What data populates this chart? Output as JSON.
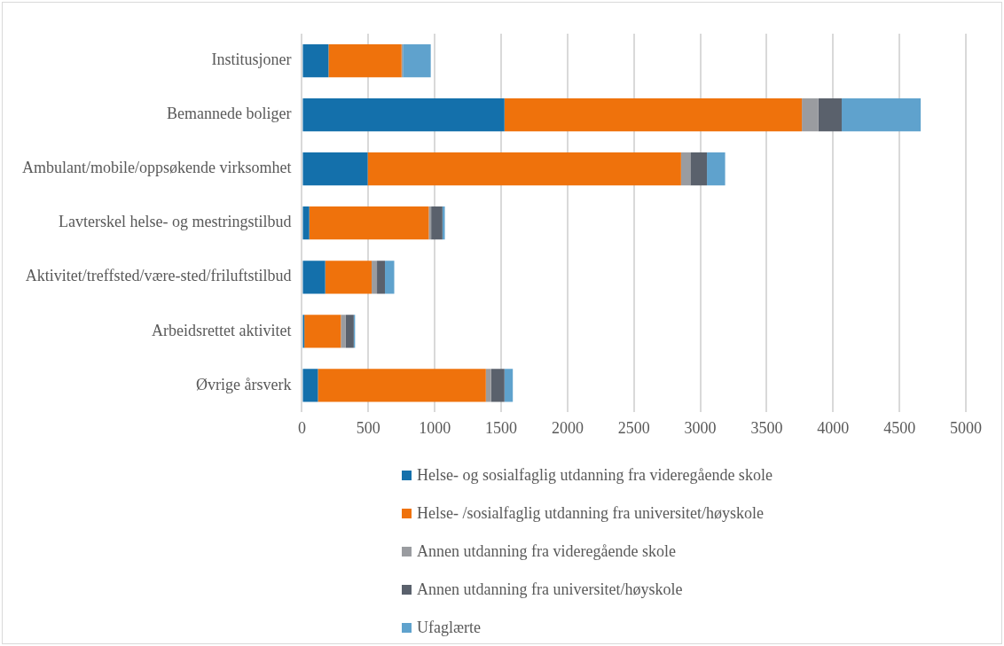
{
  "chart_data": {
    "type": "bar",
    "orientation": "horizontal",
    "stacked": true,
    "categories": [
      "Institusjoner",
      "Bemannede boliger",
      "Ambulant/mobile/oppsøkende virksomhet",
      "Lavterskel helse- og mestringstilbud",
      "Aktivitet/treffsted/være-sted/friluftstilbud",
      "Arbeidsrettet aktivitet",
      "Øvrige årsverk"
    ],
    "series": [
      {
        "name": "Helse- og sosialfaglig utdanning fra videregående skole",
        "color": "#1470ab",
        "values": [
          200,
          1525,
          495,
          55,
          175,
          18,
          120
        ]
      },
      {
        "name": "Helse- /sosialfaglig utdanning fra universitet/høyskole",
        "color": "#ef720c",
        "values": [
          550,
          2240,
          2360,
          900,
          350,
          275,
          1265
        ]
      },
      {
        "name": "Annen utdanning fra videregående skole",
        "color": "#9a9ca0",
        "values": [
          10,
          125,
          70,
          18,
          40,
          37,
          40
        ]
      },
      {
        "name": "Annen utdanning fra universitet/høyskole",
        "color": "#5a616c",
        "values": [
          0,
          175,
          125,
          85,
          60,
          60,
          100
        ]
      },
      {
        "name": "Ufaglærte",
        "color": "#5fa2cd",
        "values": [
          210,
          595,
          137,
          18,
          70,
          10,
          63
        ]
      }
    ],
    "xlim": [
      0,
      5000
    ],
    "xticks": [
      0,
      500,
      1000,
      1500,
      2000,
      2500,
      3000,
      3500,
      4000,
      4500,
      5000
    ],
    "grid": "x",
    "legend": "bottom"
  }
}
